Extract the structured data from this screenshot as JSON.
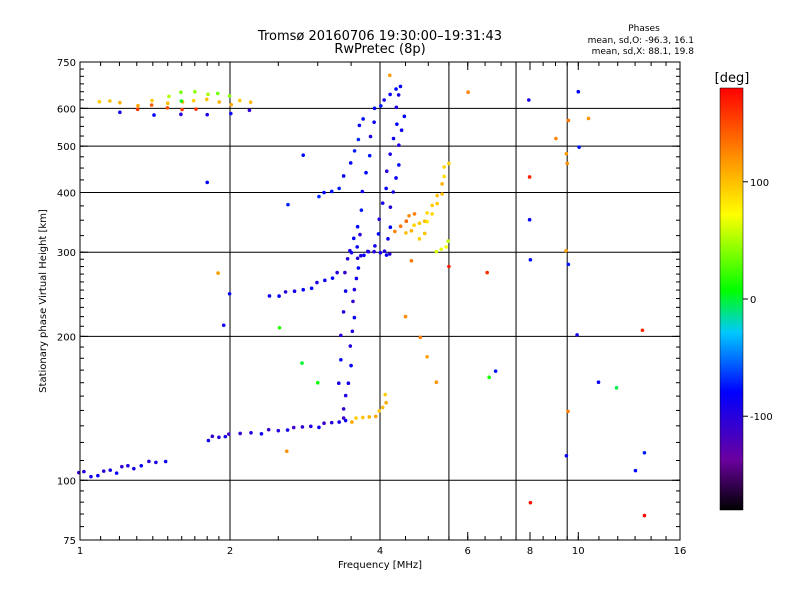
{
  "chart_data": {
    "type": "scatter",
    "title": "Tromsø 20160706 19:30:00–19:31:43",
    "subtitle": "RwPretec (8p)",
    "xlabel": "Frequency [MHz]",
    "ylabel": "Stationary phase Virtual Height [km]",
    "x_scale": "log",
    "y_scale": "log",
    "xlim": [
      1,
      16
    ],
    "ylim": [
      75,
      750
    ],
    "x_ticks": [
      1,
      2,
      4,
      6,
      8,
      10,
      16
    ],
    "x_tick_labels": [
      "1",
      "2",
      "4",
      "6",
      "8",
      "10",
      "16"
    ],
    "y_ticks": [
      75,
      100,
      200,
      300,
      400,
      500,
      600,
      750
    ],
    "y_tick_labels": [
      "75",
      "100",
      "200",
      "300",
      "400",
      "500",
      "600",
      "750"
    ],
    "grid_x": [
      2,
      4,
      5.5,
      7.5,
      9.5
    ],
    "grid_y": [
      100,
      200,
      300,
      400,
      500,
      600
    ],
    "grid": true,
    "stats": {
      "heading": "Phases",
      "line1": "mean, sd,O:  -96.3, 16.1",
      "line2": "mean, sd,X:   88.1, 19.8"
    },
    "colorbar": {
      "label": "[deg]",
      "range": [
        -180,
        180
      ],
      "ticks": [
        100,
        0,
        -100
      ],
      "tick_labels": [
        "100",
        "0",
        "-100"
      ]
    },
    "series": [
      {
        "phase": -110,
        "points": [
          [
            1.0,
            103
          ],
          [
            1.02,
            104
          ],
          [
            1.05,
            102
          ],
          [
            1.08,
            103
          ],
          [
            1.12,
            104
          ],
          [
            1.15,
            105
          ],
          [
            1.18,
            104
          ],
          [
            1.22,
            106
          ],
          [
            1.25,
            107
          ],
          [
            1.28,
            106
          ],
          [
            1.32,
            108
          ],
          [
            1.38,
            109
          ],
          [
            1.42,
            109
          ],
          [
            1.48,
            110
          ]
        ]
      },
      {
        "phase": -115,
        "points": [
          [
            1.8,
            122
          ],
          [
            1.85,
            123
          ],
          [
            1.9,
            123
          ],
          [
            1.95,
            124
          ],
          [
            2.0,
            124
          ],
          [
            2.1,
            125
          ],
          [
            2.2,
            126
          ],
          [
            2.3,
            126
          ],
          [
            2.4,
            127
          ],
          [
            2.5,
            127
          ],
          [
            2.6,
            128
          ],
          [
            2.7,
            128
          ],
          [
            2.8,
            129
          ],
          [
            2.9,
            130
          ],
          [
            3.0,
            130
          ],
          [
            3.1,
            131
          ],
          [
            3.2,
            132
          ],
          [
            3.3,
            133
          ],
          [
            3.4,
            134
          ]
        ]
      },
      {
        "phase": -110,
        "points": [
          [
            3.4,
            134
          ],
          [
            3.4,
            140
          ],
          [
            3.42,
            150
          ],
          [
            3.45,
            160
          ],
          [
            3.48,
            175
          ],
          [
            3.5,
            190
          ],
          [
            3.52,
            205
          ],
          [
            3.54,
            220
          ],
          [
            3.55,
            235
          ],
          [
            3.56,
            250
          ],
          [
            3.58,
            265
          ],
          [
            3.6,
            280
          ],
          [
            3.62,
            290
          ],
          [
            3.66,
            295
          ],
          [
            3.7,
            297
          ],
          [
            3.8,
            299
          ],
          [
            3.9,
            300
          ],
          [
            4.0,
            300
          ],
          [
            4.1,
            298
          ],
          [
            4.2,
            296
          ]
        ]
      },
      {
        "phase": -112,
        "points": [
          [
            3.3,
            160
          ],
          [
            3.32,
            180
          ],
          [
            3.35,
            200
          ],
          [
            3.38,
            225
          ],
          [
            3.4,
            250
          ],
          [
            3.42,
            270
          ],
          [
            3.45,
            290
          ],
          [
            3.5,
            300
          ],
          [
            3.58,
            310
          ],
          [
            3.66,
            325
          ]
        ]
      },
      {
        "phase": -105,
        "points": [
          [
            2.4,
            243
          ],
          [
            2.5,
            244
          ],
          [
            2.6,
            246
          ],
          [
            2.7,
            248
          ],
          [
            2.8,
            251
          ],
          [
            2.9,
            254
          ],
          [
            3.0,
            258
          ],
          [
            3.1,
            262
          ],
          [
            3.2,
            266
          ],
          [
            3.3,
            270
          ]
        ]
      },
      {
        "phase": -108,
        "points": [
          [
            3.8,
            300
          ],
          [
            3.9,
            310
          ],
          [
            3.95,
            330
          ],
          [
            4.0,
            350
          ],
          [
            4.05,
            380
          ],
          [
            4.1,
            410
          ],
          [
            4.15,
            440
          ],
          [
            4.2,
            480
          ],
          [
            4.25,
            520
          ],
          [
            4.3,
            560
          ],
          [
            4.33,
            600
          ],
          [
            4.36,
            640
          ],
          [
            4.38,
            670
          ]
        ]
      },
      {
        "phase": -106,
        "points": [
          [
            4.1,
            300
          ],
          [
            4.15,
            320
          ],
          [
            4.18,
            340
          ],
          [
            4.22,
            370
          ],
          [
            4.26,
            400
          ],
          [
            4.3,
            430
          ],
          [
            4.34,
            460
          ],
          [
            4.38,
            500
          ],
          [
            4.42,
            540
          ],
          [
            4.46,
            580
          ]
        ]
      },
      {
        "phase": -100,
        "points": [
          [
            3.5,
            300
          ],
          [
            3.55,
            320
          ],
          [
            3.6,
            340
          ],
          [
            3.65,
            370
          ],
          [
            3.7,
            400
          ],
          [
            3.75,
            440
          ],
          [
            3.8,
            480
          ],
          [
            3.85,
            520
          ],
          [
            3.9,
            560
          ]
        ]
      },
      {
        "phase": -95,
        "points": [
          [
            3.0,
            395
          ],
          [
            3.1,
            398
          ],
          [
            3.2,
            402
          ],
          [
            3.3,
            410
          ],
          [
            3.4,
            430
          ],
          [
            3.5,
            460
          ],
          [
            3.55,
            490
          ],
          [
            3.6,
            520
          ],
          [
            3.65,
            550
          ],
          [
            3.7,
            570
          ]
        ]
      },
      {
        "phase": 100,
        "points": [
          [
            3.5,
            133
          ],
          [
            3.6,
            134
          ],
          [
            3.7,
            135
          ],
          [
            3.8,
            136
          ],
          [
            3.9,
            137
          ],
          [
            4.0,
            139
          ],
          [
            4.05,
            142
          ],
          [
            4.1,
            146
          ],
          [
            4.12,
            150
          ]
        ]
      },
      {
        "phase": 95,
        "points": [
          [
            4.5,
            330
          ],
          [
            4.6,
            335
          ],
          [
            4.7,
            340
          ],
          [
            4.8,
            345
          ],
          [
            4.9,
            350
          ],
          [
            5.0,
            360
          ],
          [
            5.1,
            375
          ],
          [
            5.2,
            395
          ],
          [
            5.3,
            420
          ],
          [
            5.4,
            450
          ]
        ]
      },
      {
        "phase": 90,
        "points": [
          [
            4.8,
            320
          ],
          [
            4.9,
            330
          ],
          [
            5.0,
            345
          ],
          [
            5.1,
            360
          ],
          [
            5.2,
            380
          ],
          [
            5.3,
            400
          ],
          [
            5.4,
            430
          ],
          [
            5.5,
            460
          ]
        ]
      },
      {
        "phase": 60,
        "points": [
          [
            5.2,
            300
          ],
          [
            5.3,
            305
          ],
          [
            5.4,
            310
          ],
          [
            5.5,
            315
          ]
        ]
      },
      {
        "phase": 130,
        "points": [
          [
            4.3,
            330
          ],
          [
            4.4,
            340
          ],
          [
            4.5,
            350
          ],
          [
            4.6,
            355
          ],
          [
            4.7,
            360
          ]
        ]
      },
      {
        "phase": 100,
        "points": [
          [
            1.1,
            615
          ],
          [
            1.15,
            620
          ],
          [
            1.2,
            618
          ],
          [
            1.3,
            612
          ],
          [
            1.4,
            620
          ],
          [
            1.5,
            615
          ],
          [
            1.6,
            622
          ],
          [
            1.7,
            618
          ],
          [
            1.8,
            625
          ],
          [
            1.9,
            620
          ],
          [
            2.0,
            615
          ],
          [
            2.1,
            620
          ],
          [
            2.2,
            618
          ]
        ]
      },
      {
        "phase": 40,
        "points": [
          [
            1.5,
            640
          ],
          [
            1.6,
            645
          ],
          [
            1.7,
            650
          ],
          [
            1.8,
            645
          ],
          [
            1.9,
            640
          ],
          [
            2.0,
            635
          ]
        ]
      },
      {
        "phase": 150,
        "points": [
          [
            1.3,
            600
          ],
          [
            1.4,
            605
          ],
          [
            1.5,
            600
          ],
          [
            1.6,
            598
          ],
          [
            1.7,
            602
          ]
        ]
      },
      {
        "phase": -110,
        "points": [
          [
            1.2,
            590
          ],
          [
            1.4,
            585
          ],
          [
            1.6,
            580
          ],
          [
            1.8,
            582
          ],
          [
            2.0,
            588
          ],
          [
            2.2,
            590
          ]
        ]
      },
      {
        "phase": -100,
        "points": [
          [
            3.9,
            600
          ],
          [
            4.0,
            610
          ],
          [
            4.1,
            620
          ],
          [
            4.2,
            640
          ],
          [
            4.3,
            660
          ]
        ]
      },
      {
        "phase": -100,
        "points": [
          [
            2.0,
            245
          ],
          [
            2.8,
            480
          ],
          [
            2.6,
            380
          ],
          [
            1.95,
            210
          ],
          [
            1.8,
            420
          ],
          [
            6.8,
            170
          ],
          [
            8.0,
            620
          ],
          [
            8.0,
            350
          ],
          [
            8.0,
            290
          ],
          [
            9.5,
            285
          ],
          [
            9.5,
            112
          ],
          [
            10.0,
            650
          ],
          [
            10.0,
            500
          ],
          [
            10.0,
            200
          ],
          [
            11.0,
            160
          ],
          [
            13.0,
            105
          ],
          [
            13.5,
            115
          ]
        ]
      },
      {
        "phase": 120,
        "points": [
          [
            4.2,
            700
          ],
          [
            4.5,
            220
          ],
          [
            4.8,
            200
          ],
          [
            5.0,
            180
          ],
          [
            5.2,
            160
          ],
          [
            6.0,
            650
          ],
          [
            9.5,
            570
          ],
          [
            9.5,
            480
          ],
          [
            9.5,
            460
          ],
          [
            9.5,
            140
          ],
          [
            9.5,
            300
          ],
          [
            10.5,
            570
          ],
          [
            9.0,
            520
          ],
          [
            4.6,
            290
          ],
          [
            1.9,
            270
          ],
          [
            2.6,
            115
          ]
        ]
      },
      {
        "phase": 170,
        "points": [
          [
            6.6,
            270
          ],
          [
            8.0,
            430
          ],
          [
            8.0,
            90
          ],
          [
            13.5,
            85
          ],
          [
            13.5,
            205
          ],
          [
            5.5,
            280
          ]
        ]
      },
      {
        "phase": 0,
        "points": [
          [
            2.5,
            210
          ],
          [
            2.8,
            175
          ],
          [
            3.0,
            160
          ],
          [
            6.6,
            165
          ],
          [
            12.0,
            155
          ],
          [
            1.6,
            620
          ]
        ]
      }
    ]
  }
}
